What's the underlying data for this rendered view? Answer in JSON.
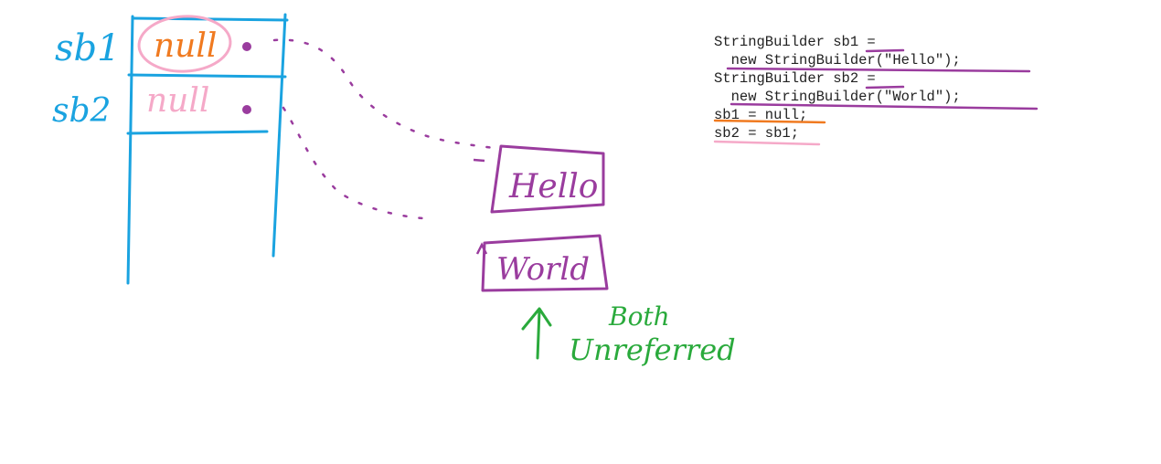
{
  "stack_labels": [
    "sb1",
    "sb2"
  ],
  "slot_values": [
    "null",
    "null"
  ],
  "heap_objects": [
    "Hello",
    "World"
  ],
  "annotation": [
    "Both",
    "Unreferred"
  ],
  "code_lines": [
    "StringBuilder sb1 =",
    "  new StringBuilder(\"Hello\");",
    "StringBuilder sb2 =",
    "  new StringBuilder(\"World\");",
    "sb1 = null;",
    "sb2 = sb1;"
  ],
  "colors": {
    "stack_frame": "#1aa3e0",
    "reference": "#9a3c9e",
    "null_sb1": "#f07a20",
    "null_sb2": "#f5a9c8",
    "circle": "#f5a9c8",
    "annotation": "#2aaa3c",
    "underline_purple": "#9a3c9e",
    "underline_orange": "#f07a20",
    "underline_pink": "#f5a9c8"
  }
}
